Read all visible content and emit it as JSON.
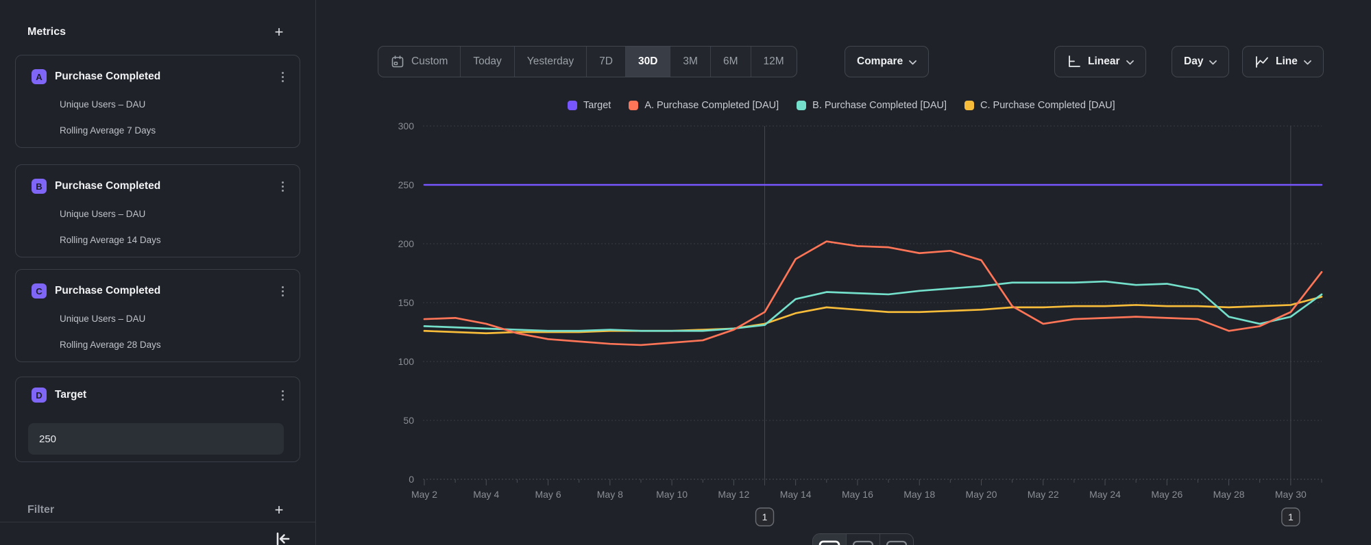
{
  "sidebar": {
    "title": "Metrics",
    "metrics": [
      {
        "badge": "A",
        "title": "Purchase Completed",
        "line1": "Unique Users – DAU",
        "line2": "Rolling Average 7 Days"
      },
      {
        "badge": "B",
        "title": "Purchase Completed",
        "line1": "Unique Users – DAU",
        "line2": "Rolling Average 14 Days"
      },
      {
        "badge": "C",
        "title": "Purchase Completed",
        "line1": "Unique Users – DAU",
        "line2": "Rolling Average 28 Days"
      }
    ],
    "target": {
      "badge": "D",
      "title": "Target",
      "value": "250"
    },
    "filter": {
      "title": "Filter"
    }
  },
  "toolbar": {
    "ranges": [
      {
        "label": "Custom",
        "icon": "calendar-icon",
        "active": false
      },
      {
        "label": "Today",
        "active": false
      },
      {
        "label": "Yesterday",
        "active": false
      },
      {
        "label": "7D",
        "active": false
      },
      {
        "label": "30D",
        "active": true
      },
      {
        "label": "3M",
        "active": false
      },
      {
        "label": "6M",
        "active": false
      },
      {
        "label": "12M",
        "active": false
      }
    ],
    "compare_label": "Compare",
    "scale_label": "Linear",
    "interval_label": "Day",
    "chart_type_label": "Line"
  },
  "icons": {
    "plus": "+",
    "kebab": "vertical-dots",
    "collapse": "collapse-left",
    "chart_styles": [
      "line-style",
      "stacked-style",
      "bar-style"
    ]
  },
  "colors": {
    "target": "#7856ff",
    "series_a": "#ff7557",
    "series_b": "#74e0cb",
    "series_c": "#f8bc3b",
    "grid": "#3a3e44",
    "axis_text": "#8a8e95"
  },
  "chart_data": {
    "type": "line",
    "x": [
      "May 2",
      "May 3",
      "May 4",
      "May 5",
      "May 6",
      "May 7",
      "May 8",
      "May 9",
      "May 10",
      "May 11",
      "May 12",
      "May 13",
      "May 14",
      "May 15",
      "May 16",
      "May 17",
      "May 18",
      "May 19",
      "May 20",
      "May 21",
      "May 22",
      "May 23",
      "May 24",
      "May 25",
      "May 26",
      "May 27",
      "May 28",
      "May 29",
      "May 30",
      "May 31"
    ],
    "x_labeled_every": 2,
    "ylim": [
      0,
      300
    ],
    "yticks": [
      0,
      50,
      100,
      150,
      200,
      250,
      300
    ],
    "legend_position": "top",
    "grid": "horizontal-dashed",
    "series": [
      {
        "name": "Target",
        "color": "#7856ff",
        "constant": 250
      },
      {
        "name": "A. Purchase Completed [DAU]",
        "color": "#ff7557",
        "values": [
          136,
          137,
          132,
          124,
          119,
          117,
          115,
          114,
          116,
          118,
          127,
          142,
          187,
          202,
          198,
          197,
          192,
          194,
          186,
          147,
          132,
          136,
          137,
          138,
          137,
          136,
          126,
          130,
          142,
          176
        ]
      },
      {
        "name": "B. Purchase Completed [DAU]",
        "color": "#74e0cb",
        "values": [
          130,
          129,
          128,
          127,
          126,
          126,
          127,
          126,
          126,
          126,
          128,
          131,
          153,
          159,
          158,
          157,
          160,
          162,
          164,
          167,
          167,
          167,
          168,
          165,
          166,
          161,
          138,
          132,
          138,
          157
        ]
      },
      {
        "name": "C. Purchase Completed [DAU]",
        "color": "#f8bc3b",
        "values": [
          126,
          125,
          124,
          125,
          125,
          125,
          126,
          126,
          126,
          127,
          128,
          132,
          141,
          146,
          144,
          142,
          142,
          143,
          144,
          146,
          146,
          147,
          147,
          148,
          147,
          147,
          146,
          147,
          148,
          155
        ]
      }
    ],
    "annotations": [
      {
        "date": "May 13",
        "label": "1"
      },
      {
        "date": "May 30",
        "label": "1"
      }
    ]
  }
}
